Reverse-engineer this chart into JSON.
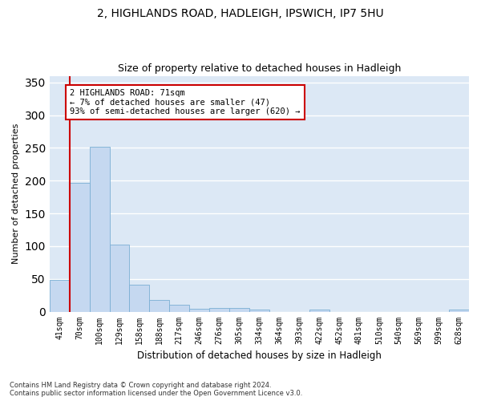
{
  "title": "2, HIGHLANDS ROAD, HADLEIGH, IPSWICH, IP7 5HU",
  "subtitle": "Size of property relative to detached houses in Hadleigh",
  "xlabel": "Distribution of detached houses by size in Hadleigh",
  "ylabel": "Number of detached properties",
  "categories": [
    "41sqm",
    "70sqm",
    "100sqm",
    "129sqm",
    "158sqm",
    "188sqm",
    "217sqm",
    "246sqm",
    "276sqm",
    "305sqm",
    "334sqm",
    "364sqm",
    "393sqm",
    "422sqm",
    "452sqm",
    "481sqm",
    "510sqm",
    "540sqm",
    "569sqm",
    "599sqm",
    "628sqm"
  ],
  "values": [
    49,
    197,
    252,
    102,
    41,
    18,
    10,
    4,
    5,
    5,
    3,
    0,
    0,
    3,
    0,
    0,
    0,
    0,
    0,
    0,
    3
  ],
  "bar_color": "#c5d8f0",
  "bar_edge_color": "#7aafd4",
  "annotation_text": "2 HIGHLANDS ROAD: 71sqm\n← 7% of detached houses are smaller (47)\n93% of semi-detached houses are larger (620) →",
  "annotation_box_color": "#ffffff",
  "annotation_box_edge_color": "#cc0000",
  "ylim": [
    0,
    360
  ],
  "yticks": [
    0,
    50,
    100,
    150,
    200,
    250,
    300,
    350
  ],
  "background_color": "#dce8f5",
  "grid_color": "#ffffff",
  "title_fontsize": 10,
  "subtitle_fontsize": 9,
  "xlabel_fontsize": 8.5,
  "ylabel_fontsize": 8,
  "tick_fontsize": 7,
  "footnote": "Contains HM Land Registry data © Crown copyright and database right 2024.\nContains public sector information licensed under the Open Government Licence v3.0."
}
